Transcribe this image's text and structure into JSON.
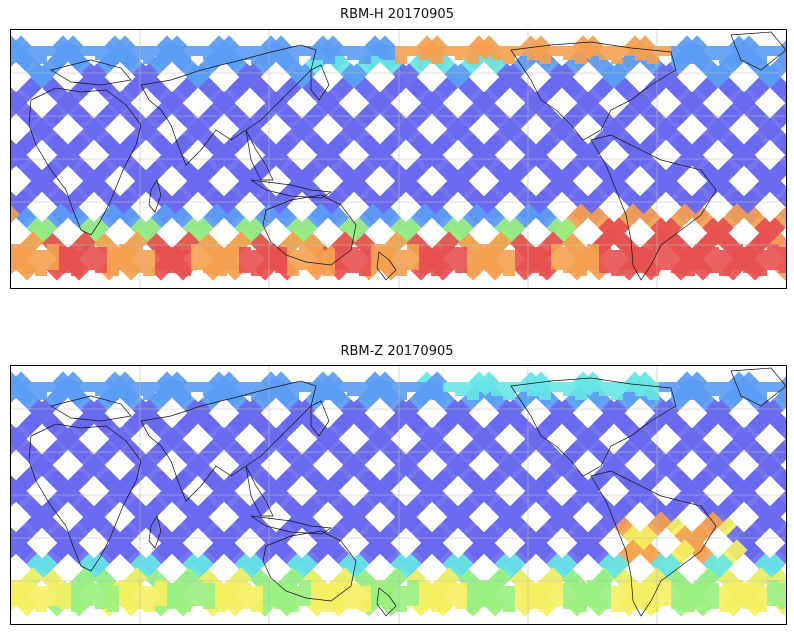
{
  "panels": [
    {
      "title": "RBM-H 20170905",
      "variant": "H"
    },
    {
      "title": "RBM-Z 20170905",
      "variant": "Z"
    }
  ],
  "colors": {
    "low": "#6a6af0",
    "low2": "#5b9cf5",
    "mid": "#66e6e6",
    "mid2": "#9af080",
    "high": "#f5f060",
    "high2": "#f5a050",
    "max": "#e85050",
    "coast": "#111111",
    "grid": "#bbbbbb"
  }
}
